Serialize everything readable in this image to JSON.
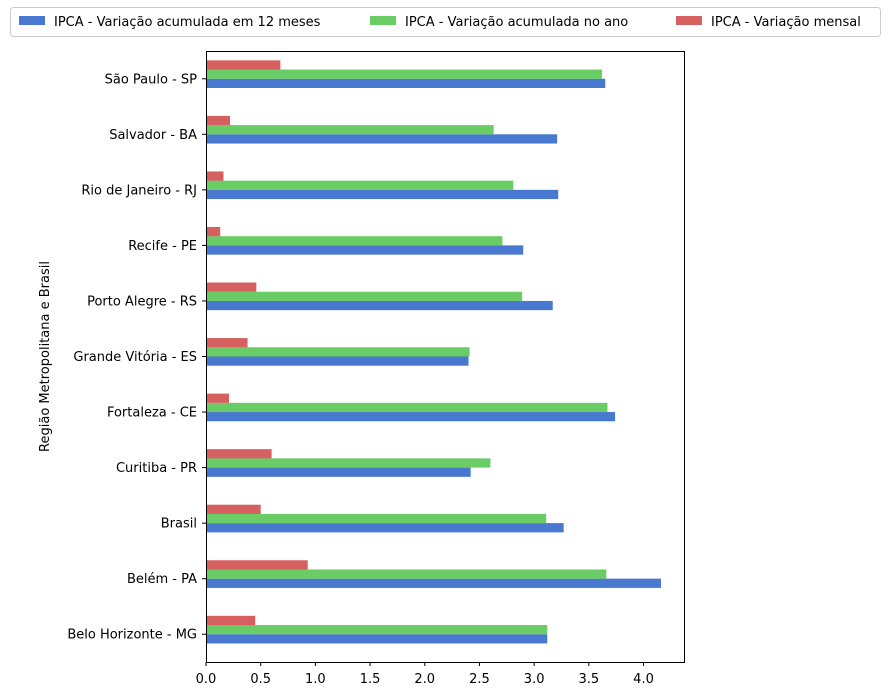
{
  "chart_data": {
    "type": "bar",
    "orientation": "horizontal",
    "title": "",
    "xlabel": "",
    "ylabel": "Região Metropolitana e Brasil",
    "categories": [
      "Belo Horizonte - MG",
      "Belém - PA",
      "Brasil",
      "Curitiba - PR",
      "Fortaleza - CE",
      "Grande Vitória - ES",
      "Porto Alegre - RS",
      "Recife - PE",
      "Rio de Janeiro - RJ",
      "Salvador - BA",
      "São Paulo - SP"
    ],
    "series": [
      {
        "name": "IPCA - Variação acumulada em 12 meses",
        "color": "#4878cf",
        "values": [
          3.12,
          4.16,
          3.27,
          2.42,
          3.74,
          2.4,
          3.17,
          2.9,
          3.22,
          3.21,
          3.65
        ]
      },
      {
        "name": "IPCA - Variação acumulada no ano",
        "color": "#6acc65",
        "values": [
          3.12,
          3.66,
          3.11,
          2.6,
          3.67,
          2.41,
          2.89,
          2.71,
          2.81,
          2.63,
          3.62
        ]
      },
      {
        "name": "IPCA - Variação mensal",
        "color": "#d65f5f",
        "values": [
          0.45,
          0.93,
          0.5,
          0.6,
          0.21,
          0.38,
          0.46,
          0.13,
          0.16,
          0.22,
          0.68
        ]
      }
    ],
    "xlim": [
      0,
      4.37
    ],
    "xticks": [
      "0.0",
      "0.5",
      "1.0",
      "1.5",
      "2.0",
      "2.5",
      "3.0",
      "3.5",
      "4.0"
    ],
    "grid": false,
    "legend_position": "top"
  }
}
